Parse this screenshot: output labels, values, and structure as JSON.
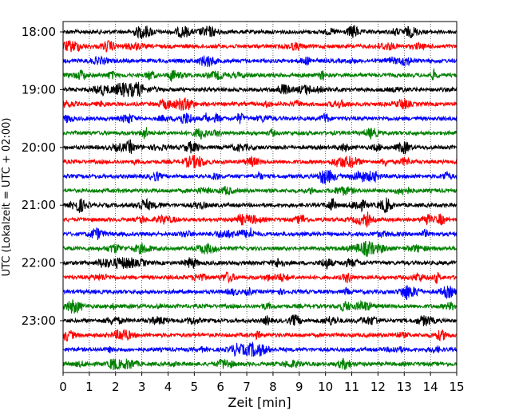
{
  "chart_data": {
    "type": "line",
    "title": "",
    "xlabel": "Zeit  [min]",
    "ylabel": "UTC (Lokalzeit = UTC + 02:00)",
    "xlim": [
      0,
      15
    ],
    "x_ticks": [
      0,
      1,
      2,
      3,
      4,
      5,
      6,
      7,
      8,
      9,
      10,
      11,
      12,
      13,
      14,
      15
    ],
    "x_tick_labels": [
      "0",
      "1",
      "2",
      "3",
      "4",
      "5",
      "6",
      "7",
      "8",
      "9",
      "10",
      "11",
      "12",
      "13",
      "14",
      "15"
    ],
    "grid": "vertical dotted",
    "legend": "none",
    "trace_colors": [
      "#000000",
      "#ff0000",
      "#0000ff",
      "#008000"
    ],
    "hour_labels": [
      "18:00",
      "19:00",
      "20:00",
      "21:00",
      "22:00",
      "23:00"
    ],
    "traces_per_hour": 4,
    "minutes_per_trace": 15,
    "series": [
      {
        "start": "18:00",
        "color": "#000000"
      },
      {
        "start": "18:15",
        "color": "#ff0000"
      },
      {
        "start": "18:30",
        "color": "#0000ff"
      },
      {
        "start": "18:45",
        "color": "#008000"
      },
      {
        "start": "19:00",
        "color": "#000000"
      },
      {
        "start": "19:15",
        "color": "#ff0000"
      },
      {
        "start": "19:30",
        "color": "#0000ff"
      },
      {
        "start": "19:45",
        "color": "#008000"
      },
      {
        "start": "20:00",
        "color": "#000000"
      },
      {
        "start": "20:15",
        "color": "#ff0000"
      },
      {
        "start": "20:30",
        "color": "#0000ff"
      },
      {
        "start": "20:45",
        "color": "#008000"
      },
      {
        "start": "21:00",
        "color": "#000000"
      },
      {
        "start": "21:15",
        "color": "#ff0000"
      },
      {
        "start": "21:30",
        "color": "#0000ff"
      },
      {
        "start": "21:45",
        "color": "#008000"
      },
      {
        "start": "22:00",
        "color": "#000000"
      },
      {
        "start": "22:15",
        "color": "#ff0000"
      },
      {
        "start": "22:30",
        "color": "#0000ff"
      },
      {
        "start": "22:45",
        "color": "#008000"
      },
      {
        "start": "23:00",
        "color": "#000000"
      },
      {
        "start": "23:15",
        "color": "#ff0000"
      },
      {
        "start": "23:30",
        "color": "#0000ff"
      },
      {
        "start": "23:45",
        "color": "#008000"
      }
    ]
  }
}
